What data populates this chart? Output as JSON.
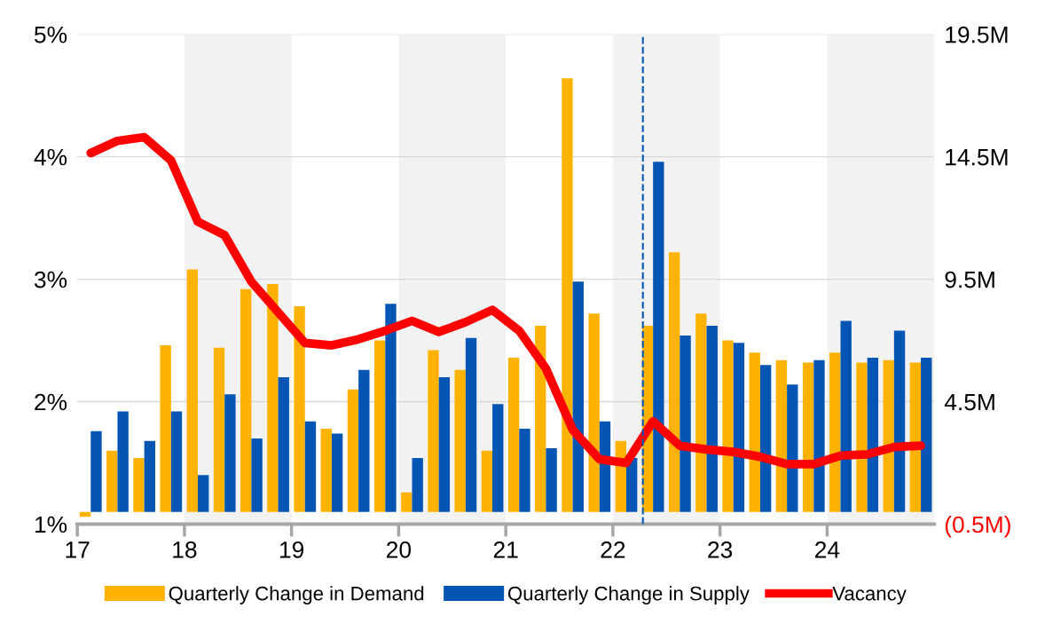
{
  "chart_data": {
    "type": "bar",
    "x": [
      17.125,
      17.375,
      17.625,
      17.875,
      18.125,
      18.375,
      18.625,
      18.875,
      19.125,
      19.375,
      19.625,
      19.875,
      20.125,
      20.375,
      20.625,
      20.875,
      21.125,
      21.375,
      21.625,
      21.875,
      22.125,
      22.375,
      22.625,
      22.875,
      23.125,
      23.375,
      23.625,
      23.875,
      24.125,
      24.375,
      24.625,
      24.875
    ],
    "series": [
      {
        "name": "Quarterly Change in Demand",
        "color": "#ffb300",
        "axis": "y2",
        "values": [
          -0.2,
          2.5,
          2.2,
          6.8,
          9.9,
          6.7,
          9.1,
          9.3,
          8.4,
          3.4,
          5.0,
          7.0,
          0.8,
          6.6,
          5.8,
          2.5,
          6.3,
          7.6,
          17.7,
          8.1,
          2.9,
          7.6,
          10.6,
          8.1,
          7.0,
          6.5,
          6.2,
          6.1,
          6.5,
          6.1,
          6.2,
          6.1
        ]
      },
      {
        "name": "Quarterly Change in Supply",
        "color": "#0455b4",
        "axis": "y2",
        "values": [
          3.3,
          4.1,
          2.9,
          4.1,
          1.5,
          4.8,
          3.0,
          5.5,
          3.7,
          3.2,
          5.8,
          8.5,
          2.2,
          5.5,
          7.1,
          4.4,
          3.4,
          2.6,
          9.4,
          3.7,
          2.2,
          14.3,
          7.2,
          7.6,
          6.9,
          6.0,
          5.2,
          6.2,
          7.8,
          6.3,
          7.4,
          6.3
        ]
      },
      {
        "name": "Vacancy",
        "type": "line",
        "color": "#ff0000",
        "axis": "y",
        "values": [
          4.03,
          4.13,
          4.16,
          3.97,
          3.47,
          3.36,
          2.98,
          2.73,
          2.48,
          2.46,
          2.51,
          2.58,
          2.66,
          2.57,
          2.65,
          2.75,
          2.58,
          2.27,
          1.77,
          1.53,
          1.5,
          1.84,
          1.64,
          1.61,
          1.59,
          1.55,
          1.49,
          1.49,
          1.56,
          1.57,
          1.63,
          1.64
        ]
      }
    ],
    "xlim": [
      17,
      25
    ],
    "xticks": [
      17,
      18,
      19,
      20,
      21,
      22,
      23,
      24
    ],
    "ylim": [
      1,
      5
    ],
    "yticks": [
      {
        "value": 1,
        "label": "1%"
      },
      {
        "value": 2,
        "label": "2%"
      },
      {
        "value": 3,
        "label": "3%"
      },
      {
        "value": 4,
        "label": "4%"
      },
      {
        "value": 5,
        "label": "5%"
      }
    ],
    "y2lim": [
      -0.5,
      19.5
    ],
    "y2ticks": [
      {
        "value": -0.5,
        "label": "(0.5M)"
      },
      {
        "value": 4.5,
        "label": "4.5M"
      },
      {
        "value": 9.5,
        "label": "9.5M"
      },
      {
        "value": 14.5,
        "label": "14.5M"
      },
      {
        "value": 19.5,
        "label": "19.5M"
      }
    ],
    "bands": [
      {
        "axis": "x",
        "from": 18,
        "to": 19,
        "color": "#f2f2f2"
      },
      {
        "axis": "x",
        "from": 20,
        "to": 21,
        "color": "#f2f2f2"
      },
      {
        "axis": "x",
        "from": 22,
        "to": 23,
        "color": "#f2f2f2"
      },
      {
        "axis": "x",
        "from": 24,
        "to": 25,
        "color": "#f2f2f2"
      }
    ],
    "ref_lines": [
      {
        "axis": "x",
        "value": 22.28,
        "color": "#0455b4",
        "line_style": "dashed"
      }
    ],
    "grid": "y",
    "legend": "bottom"
  }
}
